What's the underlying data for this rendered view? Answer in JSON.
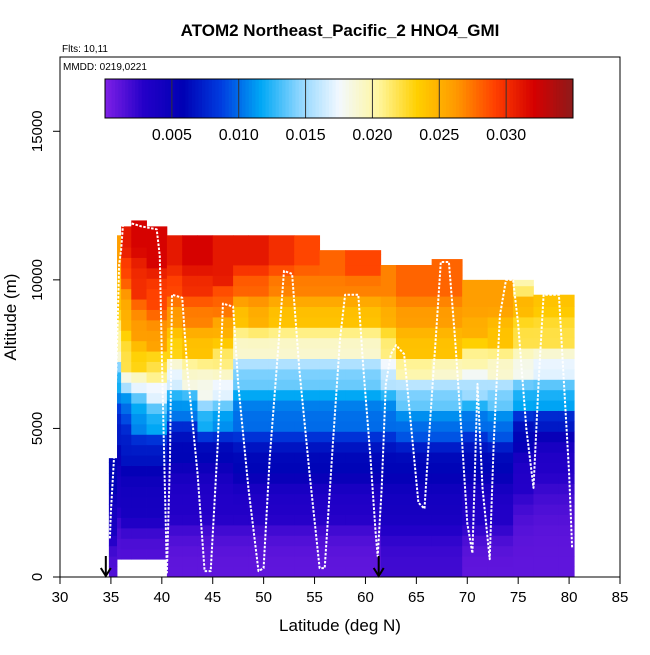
{
  "chart_data": {
    "type": "heatmap",
    "title": "ATOM2 Northeast_Pacific_2 HNO4_GMI",
    "flights_label": "Flts: 10,11",
    "dates_label": "MMDD: 0219,0221",
    "xlabel": "Latitude (deg N)",
    "ylabel": "Altitude (m)",
    "xlim": [
      30,
      85
    ],
    "ylim": [
      0,
      17500
    ],
    "x_ticks": [
      "30",
      "35",
      "40",
      "45",
      "50",
      "55",
      "60",
      "65",
      "70",
      "75",
      "80",
      "85"
    ],
    "y_ticks": [
      "0",
      "5000",
      "10000",
      "15000"
    ],
    "colorbar": {
      "range": [
        0,
        0.035
      ],
      "tick_values": [
        0.005,
        0.01,
        0.015,
        0.02,
        0.025,
        0.03
      ],
      "tick_labels": [
        "0.005",
        "0.010",
        "0.015",
        "0.020",
        "0.025",
        "0.030"
      ],
      "colors": [
        "#7f20e6",
        "#2300c8",
        "#0000b4",
        "#003ee0",
        "#00a8f5",
        "#8fd6ff",
        "#f2f8ff",
        "#fff6a0",
        "#ffd000",
        "#ff9900",
        "#ff4000",
        "#d50000",
        "#8e1a1a"
      ]
    },
    "columns": [
      {
        "lat0": 34.8,
        "lat1": 35.6,
        "base": 0.0,
        "top": 4000,
        "bands": [
          [
            0,
            0.0015
          ],
          [
            1500,
            0.004
          ],
          [
            3000,
            0.006
          ]
        ]
      },
      {
        "lat0": 35.6,
        "lat1": 36.0,
        "base": 600,
        "top": 11500,
        "bands": [
          [
            600,
            0.0015
          ],
          [
            2500,
            0.004
          ],
          [
            4500,
            0.007
          ],
          [
            6200,
            0.012
          ],
          [
            7500,
            0.02
          ],
          [
            9000,
            0.024
          ],
          [
            10600,
            0.026
          ]
        ]
      },
      {
        "lat0": 36.0,
        "lat1": 37.0,
        "base": 600,
        "top": 11800,
        "bands": [
          [
            600,
            0.0015
          ],
          [
            2000,
            0.004
          ],
          [
            4000,
            0.007
          ],
          [
            5500,
            0.01
          ],
          [
            6500,
            0.018
          ],
          [
            7000,
            0.022
          ],
          [
            8500,
            0.025
          ],
          [
            10000,
            0.029
          ],
          [
            11000,
            0.031
          ]
        ]
      },
      {
        "lat0": 37.0,
        "lat1": 38.5,
        "base": 600,
        "top": 12000,
        "bands": [
          [
            600,
            0.0015
          ],
          [
            2000,
            0.004
          ],
          [
            4000,
            0.007
          ],
          [
            5000,
            0.011
          ],
          [
            6500,
            0.019
          ],
          [
            7000,
            0.023
          ],
          [
            8000,
            0.026
          ],
          [
            9500,
            0.03
          ],
          [
            11000,
            0.032
          ]
        ]
      },
      {
        "lat0": 38.5,
        "lat1": 40.5,
        "base": 600,
        "top": 11800,
        "bands": [
          [
            600,
            0.0015
          ],
          [
            2000,
            0.004
          ],
          [
            4000,
            0.007
          ],
          [
            5000,
            0.012
          ],
          [
            6000,
            0.017
          ],
          [
            6800,
            0.022
          ],
          [
            7800,
            0.026
          ],
          [
            9000,
            0.029
          ],
          [
            10500,
            0.032
          ]
        ]
      },
      {
        "lat0": 40.5,
        "lat1": 42.0,
        "base": 0.0,
        "top": 11500,
        "bands": [
          [
            0,
            0.001
          ],
          [
            2000,
            0.003
          ],
          [
            4000,
            0.006
          ],
          [
            5500,
            0.011
          ],
          [
            6500,
            0.017
          ],
          [
            7500,
            0.023
          ],
          [
            8500,
            0.026
          ],
          [
            9500,
            0.029
          ],
          [
            10500,
            0.031
          ]
        ]
      },
      {
        "lat0": 42.0,
        "lat1": 43.5,
        "base": 0.0,
        "top": 11500,
        "bands": [
          [
            0,
            0.001
          ],
          [
            2000,
            0.003
          ],
          [
            4000,
            0.006
          ],
          [
            5500,
            0.011
          ],
          [
            6500,
            0.019
          ],
          [
            7500,
            0.024
          ],
          [
            8500,
            0.027
          ],
          [
            9500,
            0.03
          ],
          [
            10500,
            0.032
          ]
        ]
      },
      {
        "lat0": 43.5,
        "lat1": 45.0,
        "base": 0.0,
        "top": 11500,
        "bands": [
          [
            0,
            0.001
          ],
          [
            2000,
            0.003
          ],
          [
            4000,
            0.006
          ],
          [
            5000,
            0.012
          ],
          [
            6000,
            0.018
          ],
          [
            7500,
            0.024
          ],
          [
            8500,
            0.027
          ],
          [
            9500,
            0.03
          ],
          [
            10500,
            0.032
          ]
        ]
      },
      {
        "lat0": 45.0,
        "lat1": 47.0,
        "base": 0.0,
        "top": 11500,
        "bands": [
          [
            0,
            0.001
          ],
          [
            2000,
            0.003
          ],
          [
            4000,
            0.006
          ],
          [
            5000,
            0.011
          ],
          [
            6000,
            0.017
          ],
          [
            7000,
            0.021
          ],
          [
            8000,
            0.025
          ],
          [
            9000,
            0.028
          ],
          [
            10000,
            0.031
          ]
        ]
      },
      {
        "lat0": 47.0,
        "lat1": 48.5,
        "base": 0.0,
        "top": 11500,
        "bands": [
          [
            0,
            0.001
          ],
          [
            2000,
            0.003
          ],
          [
            3500,
            0.006
          ],
          [
            5000,
            0.01
          ],
          [
            6500,
            0.014
          ],
          [
            7500,
            0.019
          ],
          [
            8500,
            0.024
          ],
          [
            9500,
            0.028
          ],
          [
            10500,
            0.031
          ]
        ]
      },
      {
        "lat0": 48.5,
        "lat1": 50.5,
        "base": 0.0,
        "top": 11500,
        "bands": [
          [
            0,
            0.001
          ],
          [
            2000,
            0.003
          ],
          [
            3500,
            0.006
          ],
          [
            5000,
            0.01
          ],
          [
            6500,
            0.014
          ],
          [
            7500,
            0.019
          ],
          [
            8500,
            0.025
          ],
          [
            9500,
            0.028
          ],
          [
            10500,
            0.031
          ]
        ]
      },
      {
        "lat0": 50.5,
        "lat1": 53.0,
        "base": 0.0,
        "top": 11500,
        "bands": [
          [
            0,
            0.001
          ],
          [
            2000,
            0.003
          ],
          [
            3500,
            0.006
          ],
          [
            5000,
            0.01
          ],
          [
            6500,
            0.014
          ],
          [
            7500,
            0.019
          ],
          [
            8500,
            0.024
          ],
          [
            9500,
            0.027
          ],
          [
            10500,
            0.03
          ]
        ]
      },
      {
        "lat0": 53.0,
        "lat1": 55.5,
        "base": 0.0,
        "top": 11500,
        "bands": [
          [
            0,
            0.001
          ],
          [
            2000,
            0.003
          ],
          [
            3500,
            0.006
          ],
          [
            5000,
            0.01
          ],
          [
            6500,
            0.014
          ],
          [
            7500,
            0.019
          ],
          [
            8500,
            0.024
          ],
          [
            9500,
            0.027
          ],
          [
            10500,
            0.029
          ]
        ]
      },
      {
        "lat0": 55.5,
        "lat1": 58.0,
        "base": 0.0,
        "top": 11000,
        "bands": [
          [
            0,
            0.001
          ],
          [
            2000,
            0.003
          ],
          [
            3500,
            0.006
          ],
          [
            5000,
            0.01
          ],
          [
            6500,
            0.014
          ],
          [
            7500,
            0.019
          ],
          [
            8500,
            0.024
          ],
          [
            9500,
            0.027
          ],
          [
            10300,
            0.028
          ]
        ]
      },
      {
        "lat0": 58.0,
        "lat1": 61.5,
        "base": 0.0,
        "top": 11000,
        "bands": [
          [
            0,
            0.001
          ],
          [
            2000,
            0.003
          ],
          [
            3500,
            0.006
          ],
          [
            5000,
            0.01
          ],
          [
            6500,
            0.014
          ],
          [
            7500,
            0.019
          ],
          [
            8500,
            0.024
          ],
          [
            9500,
            0.027
          ],
          [
            10300,
            0.029
          ]
        ]
      },
      {
        "lat0": 61.5,
        "lat1": 63.0,
        "base": 0.0,
        "top": 10500,
        "bands": [
          [
            0,
            0.002
          ],
          [
            2000,
            0.004
          ],
          [
            3500,
            0.006
          ],
          [
            5000,
            0.01
          ],
          [
            6500,
            0.016
          ],
          [
            7500,
            0.021
          ],
          [
            8500,
            0.025
          ],
          [
            9500,
            0.027
          ]
        ]
      },
      {
        "lat0": 63.0,
        "lat1": 66.5,
        "base": 0.0,
        "top": 10500,
        "bands": [
          [
            0,
            0.002
          ],
          [
            2000,
            0.004
          ],
          [
            3500,
            0.006
          ],
          [
            4800,
            0.01
          ],
          [
            5800,
            0.014
          ],
          [
            6800,
            0.02
          ],
          [
            7500,
            0.024
          ],
          [
            8500,
            0.026
          ],
          [
            9500,
            0.028
          ]
        ]
      },
      {
        "lat0": 66.5,
        "lat1": 69.5,
        "base": 0.0,
        "top": 10700,
        "bands": [
          [
            0,
            0.002
          ],
          [
            2000,
            0.004
          ],
          [
            3500,
            0.006
          ],
          [
            4800,
            0.01
          ],
          [
            5800,
            0.014
          ],
          [
            6800,
            0.019
          ],
          [
            7500,
            0.024
          ],
          [
            8500,
            0.026
          ],
          [
            9500,
            0.028
          ]
        ]
      },
      {
        "lat0": 69.5,
        "lat1": 72.0,
        "base": 0.0,
        "top": 10000,
        "bands": [
          [
            0,
            0.001
          ],
          [
            1800,
            0.003
          ],
          [
            3500,
            0.006
          ],
          [
            5000,
            0.01
          ],
          [
            6000,
            0.015
          ],
          [
            7000,
            0.02
          ],
          [
            8000,
            0.025
          ],
          [
            9000,
            0.026
          ]
        ]
      },
      {
        "lat0": 72.0,
        "lat1": 74.5,
        "base": 0.0,
        "top": 10000,
        "bands": [
          [
            0,
            0.001
          ],
          [
            1800,
            0.003
          ],
          [
            3500,
            0.006
          ],
          [
            4800,
            0.01
          ],
          [
            5800,
            0.014
          ],
          [
            6800,
            0.019
          ],
          [
            7800,
            0.024
          ],
          [
            9000,
            0.026
          ]
        ]
      },
      {
        "lat0": 74.5,
        "lat1": 76.5,
        "base": 0.0,
        "top": 10000,
        "bands": [
          [
            0,
            0.001
          ],
          [
            3000,
            0.003
          ],
          [
            4500,
            0.006
          ],
          [
            5800,
            0.012
          ],
          [
            6800,
            0.018
          ],
          [
            7800,
            0.022
          ],
          [
            9000,
            0.025
          ],
          [
            9700,
            0.02
          ]
        ]
      },
      {
        "lat0": 76.5,
        "lat1": 79.0,
        "base": 0.0,
        "top": 9500,
        "bands": [
          [
            0,
            0.001
          ],
          [
            3500,
            0.003
          ],
          [
            5000,
            0.007
          ],
          [
            5800,
            0.012
          ],
          [
            6800,
            0.017
          ],
          [
            7800,
            0.022
          ],
          [
            9000,
            0.024
          ]
        ]
      },
      {
        "lat0": 79.0,
        "lat1": 80.5,
        "base": 0.0,
        "top": 9500,
        "bands": [
          [
            0,
            0.001
          ],
          [
            3500,
            0.003
          ],
          [
            5000,
            0.007
          ],
          [
            5800,
            0.012
          ],
          [
            6800,
            0.017
          ],
          [
            7800,
            0.022
          ],
          [
            9000,
            0.024
          ]
        ]
      }
    ],
    "flight_track": [
      [
        34.9,
        1300
      ],
      [
        35.0,
        2200
      ],
      [
        35.3,
        4000
      ],
      [
        35.5,
        6500
      ],
      [
        35.7,
        9000
      ],
      [
        35.8,
        10500
      ],
      [
        36.0,
        11000
      ],
      [
        36.2,
        11900
      ],
      [
        37.0,
        11900
      ],
      [
        38.0,
        11800
      ],
      [
        39.5,
        11700
      ],
      [
        39.8,
        10800
      ],
      [
        40.0,
        7500
      ],
      [
        40.3,
        3000
      ],
      [
        40.5,
        150
      ],
      [
        40.8,
        4000
      ],
      [
        41.0,
        9500
      ],
      [
        42.0,
        9400
      ],
      [
        42.5,
        7000
      ],
      [
        43.5,
        3500
      ],
      [
        44.2,
        200
      ],
      [
        44.8,
        200
      ],
      [
        45.5,
        4500
      ],
      [
        46.0,
        9200
      ],
      [
        47.0,
        9100
      ],
      [
        47.5,
        6500
      ],
      [
        48.5,
        3000
      ],
      [
        49.5,
        200
      ],
      [
        50.0,
        300
      ],
      [
        50.6,
        4000
      ],
      [
        51.5,
        8000
      ],
      [
        52.0,
        10300
      ],
      [
        52.8,
        10200
      ],
      [
        53.5,
        7000
      ],
      [
        54.5,
        3500
      ],
      [
        55.5,
        300
      ],
      [
        56.0,
        300
      ],
      [
        56.8,
        4500
      ],
      [
        57.5,
        8000
      ],
      [
        58.0,
        9500
      ],
      [
        59.3,
        9500
      ],
      [
        59.8,
        7000
      ],
      [
        60.5,
        4000
      ],
      [
        61.0,
        1500
      ],
      [
        61.2,
        700
      ],
      [
        61.6,
        3000
      ],
      [
        62.0,
        6500
      ],
      [
        62.5,
        7500
      ],
      [
        63.0,
        7800
      ],
      [
        63.8,
        7500
      ],
      [
        64.5,
        5000
      ],
      [
        65.2,
        2500
      ],
      [
        65.8,
        2300
      ],
      [
        66.3,
        5000
      ],
      [
        67.0,
        8500
      ],
      [
        67.4,
        10600
      ],
      [
        68.2,
        10600
      ],
      [
        68.8,
        8000
      ],
      [
        69.5,
        4500
      ],
      [
        70.0,
        1800
      ],
      [
        70.5,
        800
      ],
      [
        70.7,
        3000
      ],
      [
        71.0,
        6500
      ],
      [
        71.5,
        3000
      ],
      [
        72.2,
        600
      ],
      [
        72.6,
        4500
      ],
      [
        73.2,
        8800
      ],
      [
        73.8,
        10000
      ],
      [
        74.5,
        10000
      ],
      [
        75.0,
        8500
      ],
      [
        75.8,
        5000
      ],
      [
        76.5,
        3000
      ],
      [
        77.0,
        6500
      ],
      [
        77.5,
        9500
      ],
      [
        79.0,
        9500
      ],
      [
        79.5,
        6500
      ],
      [
        80.0,
        3500
      ],
      [
        80.3,
        1000
      ]
    ],
    "arrows_at_lat": [
      34.5,
      61.3
    ]
  }
}
